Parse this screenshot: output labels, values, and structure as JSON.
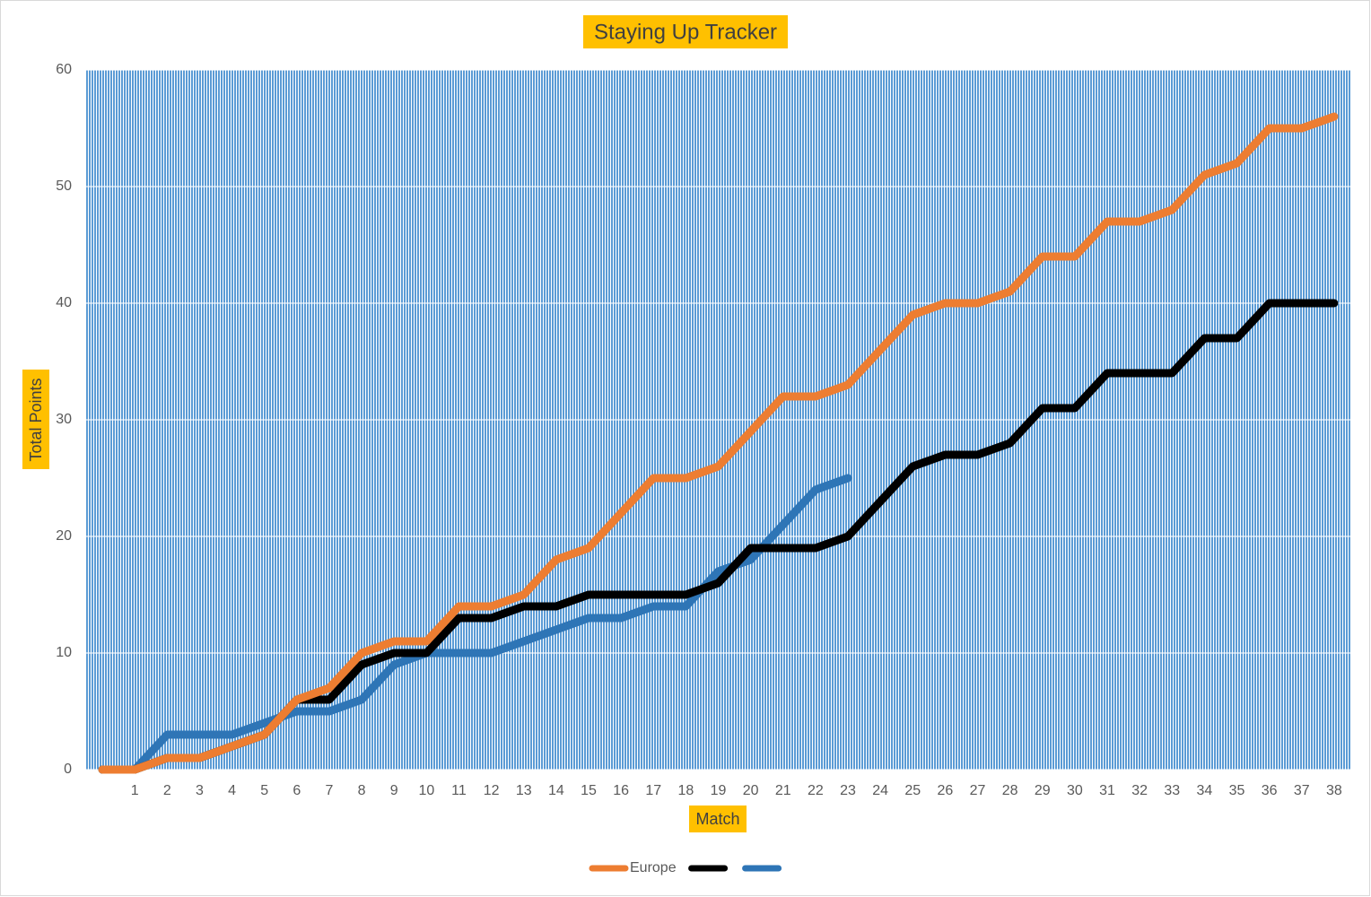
{
  "chart_data": {
    "type": "line",
    "title": "Staying Up Tracker",
    "x_label": "Match",
    "y_label": "Total Points",
    "categories": [
      null,
      "1",
      "2",
      "3",
      "4",
      "5",
      "6",
      "7",
      "8",
      "9",
      "10",
      "11",
      "12",
      "13",
      "14",
      "15",
      "16",
      "17",
      "18",
      "19",
      "20",
      "21",
      "22",
      "23",
      "24",
      "25",
      "26",
      "27",
      "28",
      "29",
      "30",
      "31",
      "32",
      "33",
      "34",
      "35",
      "36",
      "37",
      "38"
    ],
    "series": [
      {
        "name": "Europe",
        "color": "#ed7d31",
        "values": [
          0,
          0,
          1,
          1,
          2,
          3,
          6,
          7,
          10,
          11,
          11,
          14,
          14,
          15,
          18,
          19,
          22,
          25,
          25,
          26,
          29,
          32,
          32,
          33,
          36,
          39,
          40,
          40,
          41,
          44,
          44,
          47,
          47,
          48,
          51,
          52,
          55,
          55,
          56
        ]
      },
      {
        "color": "#000000",
        "values": [
          0,
          0,
          1,
          1,
          2,
          3,
          6,
          6,
          9,
          10,
          10,
          13,
          13,
          14,
          14,
          15,
          15,
          15,
          15,
          16,
          19,
          19,
          19,
          20,
          23,
          26,
          27,
          27,
          28,
          31,
          31,
          34,
          34,
          34,
          37,
          37,
          40,
          40,
          40
        ]
      },
      {
        "color": "#2e75b6",
        "values": [
          0,
          0,
          3,
          3,
          3,
          4,
          5,
          5,
          6,
          9,
          10,
          10,
          10,
          11,
          12,
          13,
          13,
          14,
          14,
          17,
          18,
          21,
          24,
          25,
          null,
          null,
          null,
          null,
          null,
          null,
          null,
          null,
          null,
          null,
          null,
          null,
          null,
          null,
          null
        ]
      }
    ],
    "ylim": [
      0,
      60
    ],
    "yticks": [
      0,
      10,
      20,
      30,
      40,
      50,
      60
    ],
    "grid": true,
    "legend": "bottom"
  }
}
